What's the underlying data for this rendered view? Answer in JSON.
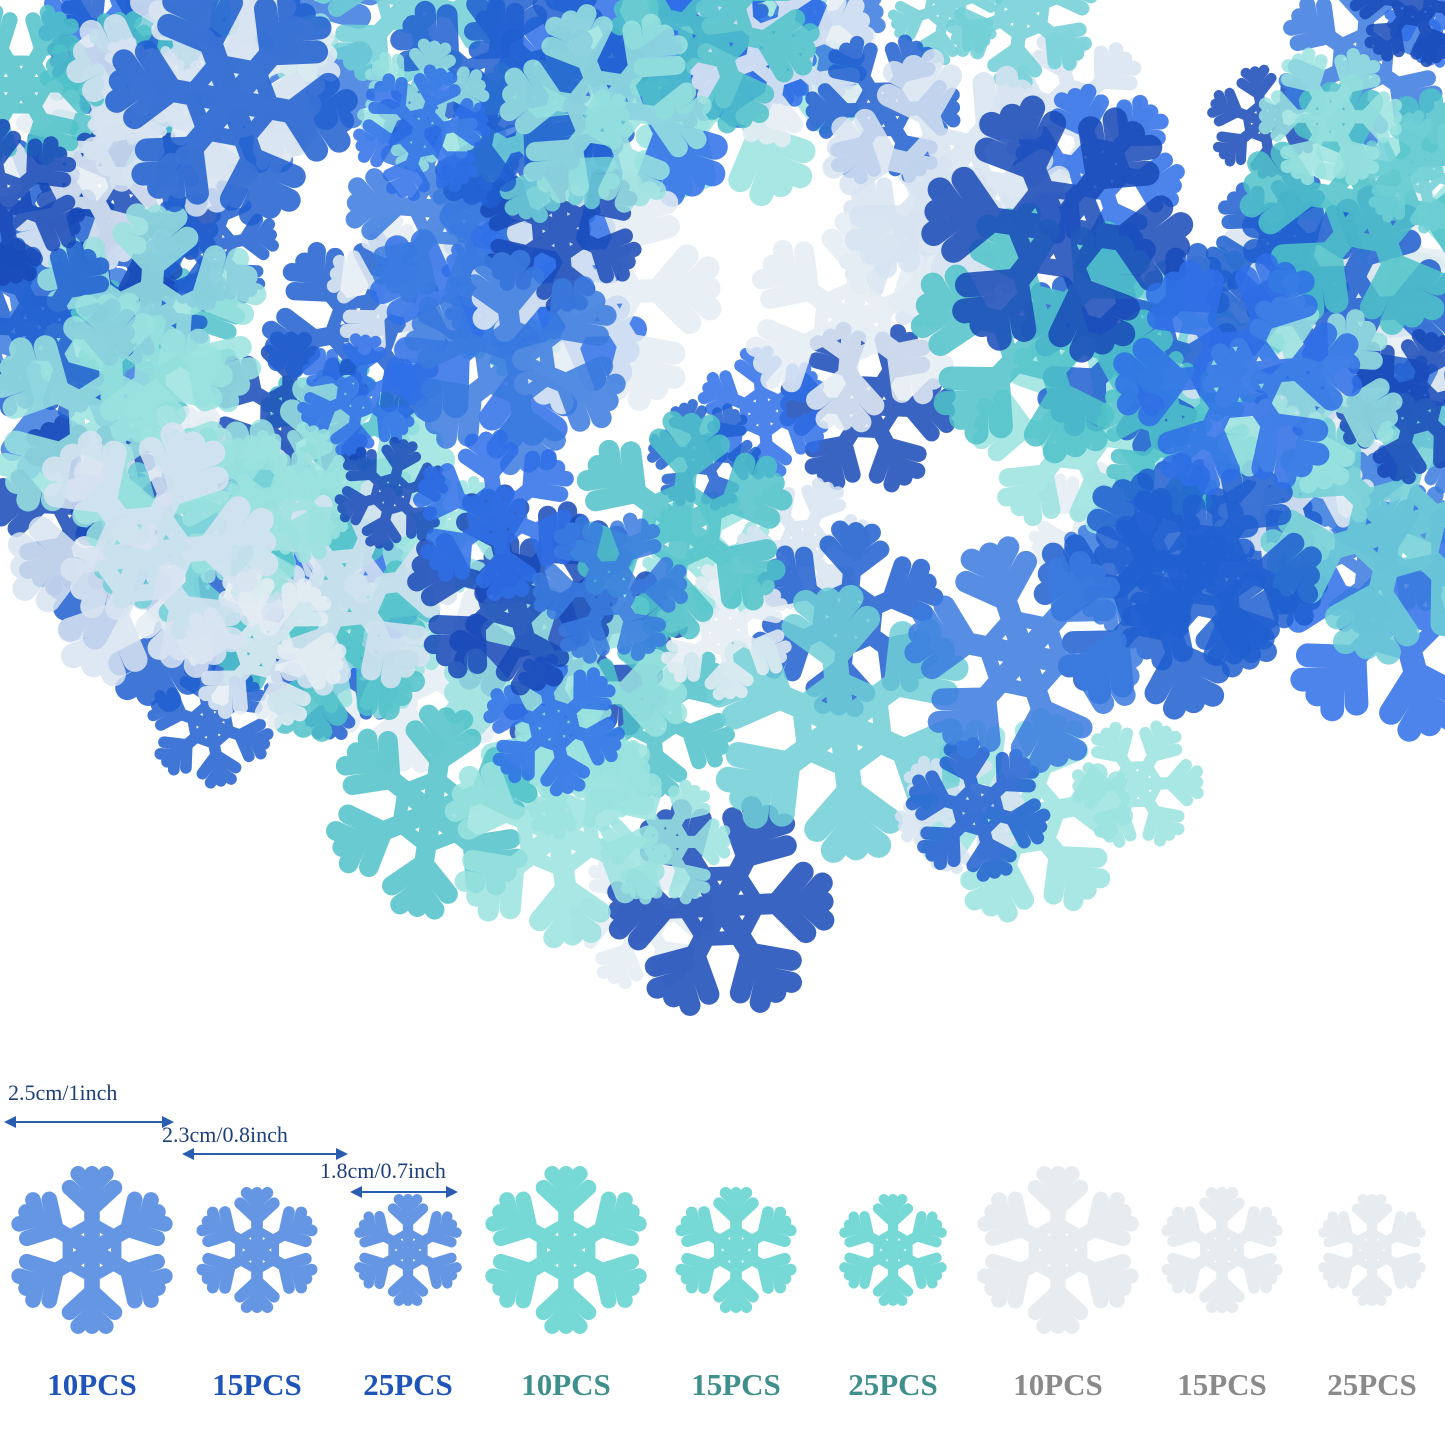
{
  "dimensions": [
    "2.5cm/1inch",
    "2.3cm/0.8inch",
    "1.8cm/0.7inch"
  ],
  "items": [
    "10PCS",
    "15PCS",
    "25PCS",
    "10PCS",
    "15PCS",
    "25PCS",
    "10PCS",
    "15PCS",
    "25PCS"
  ]
}
